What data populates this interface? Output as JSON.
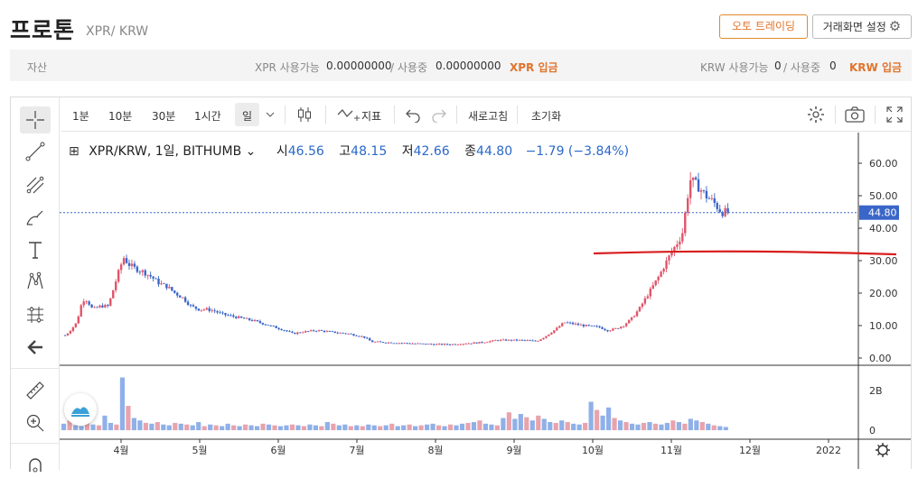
{
  "header": {
    "coin_name": "프로톤",
    "pair": "XPR/ KRW",
    "auto_trading_label": "오토 트레이딩",
    "settings_label": "거래화면 설정"
  },
  "assets": {
    "label": "자산",
    "xpr_available_label": "XPR 사용가능",
    "xpr_available": "0.00000000",
    "xpr_in_use_label": "/ 사용중",
    "xpr_in_use": "0.00000000",
    "xpr_deposit": "XPR 입금",
    "krw_available_label": "KRW 사용가능",
    "krw_available": "0",
    "krw_in_use_label": "/ 사용중",
    "krw_in_use": "0",
    "krw_deposit": "KRW 입금"
  },
  "toolbar": {
    "interval_1m": "1분",
    "interval_10m": "10분",
    "interval_30m": "30분",
    "interval_1h": "1시간",
    "interval_day": "일",
    "indicators": "지표",
    "refresh": "새로고침",
    "reset": "초기화"
  },
  "legend": {
    "symbol": "XPR/KRW, 1일, BITHUMB",
    "open_label": "시",
    "open": "46.56",
    "high_label": "고",
    "high": "48.15",
    "low_label": "저",
    "low": "42.66",
    "close_label": "종",
    "close": "44.80",
    "change": "−1.79 (−3.84%)"
  },
  "colors": {
    "up": "#e0556a",
    "down": "#3a66c9",
    "vol_up": "#e8a3ac",
    "vol_down": "#8fb0e8",
    "trendline": "#d81e1e",
    "accent": "#e0742c"
  },
  "chart_data": {
    "type": "candlestick",
    "interval": "1일",
    "last_price": "44.80",
    "y_ticks": [
      "60.00",
      "50.00",
      "40.00",
      "30.00",
      "20.00",
      "10.00",
      "0.00"
    ],
    "y_tick_values": [
      60,
      50,
      40,
      30,
      20,
      10,
      0
    ],
    "volume_ticks": [
      "2B",
      "0"
    ],
    "x_ticks": [
      "4월",
      "5월",
      "6월",
      "7월",
      "8월",
      "9월",
      "10월",
      "11월",
      "12월",
      "2022"
    ],
    "trendline_level": 32.5,
    "price_path": [
      [
        0,
        7
      ],
      [
        0.05,
        8
      ],
      [
        0.1,
        9.5
      ],
      [
        0.15,
        11
      ],
      [
        0.2,
        16
      ],
      [
        0.25,
        18.5
      ],
      [
        0.3,
        17
      ],
      [
        0.35,
        15
      ],
      [
        0.4,
        15.5
      ],
      [
        0.45,
        16
      ],
      [
        0.55,
        16
      ],
      [
        0.7,
        28
      ],
      [
        0.75,
        31
      ],
      [
        0.8,
        29
      ],
      [
        0.9,
        27.5
      ],
      [
        1.0,
        26.5
      ],
      [
        1.1,
        25
      ],
      [
        1.2,
        23
      ],
      [
        1.3,
        22
      ],
      [
        1.4,
        20
      ],
      [
        1.5,
        18.5
      ],
      [
        1.6,
        16
      ],
      [
        1.7,
        15
      ],
      [
        1.8,
        15
      ],
      [
        1.9,
        14.5
      ],
      [
        2.0,
        13.5
      ],
      [
        2.2,
        12.5
      ],
      [
        2.4,
        11.5
      ],
      [
        2.6,
        10
      ],
      [
        2.8,
        8.5
      ],
      [
        2.9,
        7.5
      ],
      [
        3.0,
        8
      ],
      [
        3.2,
        8.5
      ],
      [
        3.4,
        8
      ],
      [
        3.6,
        7.5
      ],
      [
        3.8,
        6.5
      ],
      [
        3.9,
        5
      ],
      [
        4.1,
        4.8
      ],
      [
        4.4,
        4.5
      ],
      [
        4.7,
        4.2
      ],
      [
        4.9,
        4.2
      ],
      [
        5.1,
        4.5
      ],
      [
        5.3,
        4.8
      ],
      [
        5.5,
        5.5
      ],
      [
        5.8,
        5.5
      ],
      [
        6.0,
        5.2
      ],
      [
        6.1,
        6.5
      ],
      [
        6.25,
        9
      ],
      [
        6.35,
        11
      ],
      [
        6.6,
        10
      ],
      [
        6.8,
        9.5
      ],
      [
        6.9,
        8.5
      ],
      [
        7.0,
        9
      ],
      [
        7.1,
        10
      ],
      [
        7.2,
        12
      ],
      [
        7.3,
        15
      ],
      [
        7.4,
        19
      ],
      [
        7.55,
        25
      ],
      [
        7.7,
        32
      ],
      [
        7.85,
        38
      ],
      [
        7.95,
        55
      ],
      [
        8.05,
        53
      ],
      [
        8.15,
        50
      ],
      [
        8.25,
        48
      ],
      [
        8.35,
        45
      ],
      [
        8.45,
        44.8
      ]
    ],
    "volume_bars": [
      0.08,
      0.12,
      0.06,
      0.05,
      0.1,
      0.07,
      0.06,
      0.18,
      0.09,
      0.07,
      0.65,
      0.3,
      0.15,
      0.12,
      0.09,
      0.08,
      0.1,
      0.07,
      0.06,
      0.09,
      0.08,
      0.07,
      0.06,
      0.1,
      0.05,
      0.07,
      0.06,
      0.05,
      0.08,
      0.06,
      0.05,
      0.07,
      0.06,
      0.05,
      0.08,
      0.07,
      0.06,
      0.05,
      0.06,
      0.07,
      0.06,
      0.05,
      0.07,
      0.06,
      0.05,
      0.1,
      0.08,
      0.06,
      0.07,
      0.05,
      0.06,
      0.05,
      0.07,
      0.06,
      0.05,
      0.06,
      0.08,
      0.05,
      0.06,
      0.07,
      0.05,
      0.06,
      0.07,
      0.08,
      0.06,
      0.05,
      0.07,
      0.06,
      0.08,
      0.09,
      0.1,
      0.12,
      0.08,
      0.07,
      0.06,
      0.15,
      0.22,
      0.14,
      0.2,
      0.16,
      0.12,
      0.18,
      0.14,
      0.1,
      0.09,
      0.12,
      0.1,
      0.08,
      0.07,
      0.09,
      0.35,
      0.25,
      0.18,
      0.28,
      0.15,
      0.12,
      0.1,
      0.08,
      0.07,
      0.09,
      0.1,
      0.08,
      0.07,
      0.09,
      0.12,
      0.1,
      0.08,
      0.14,
      0.12,
      0.1,
      0.08,
      0.06,
      0.05,
      0.04
    ]
  }
}
